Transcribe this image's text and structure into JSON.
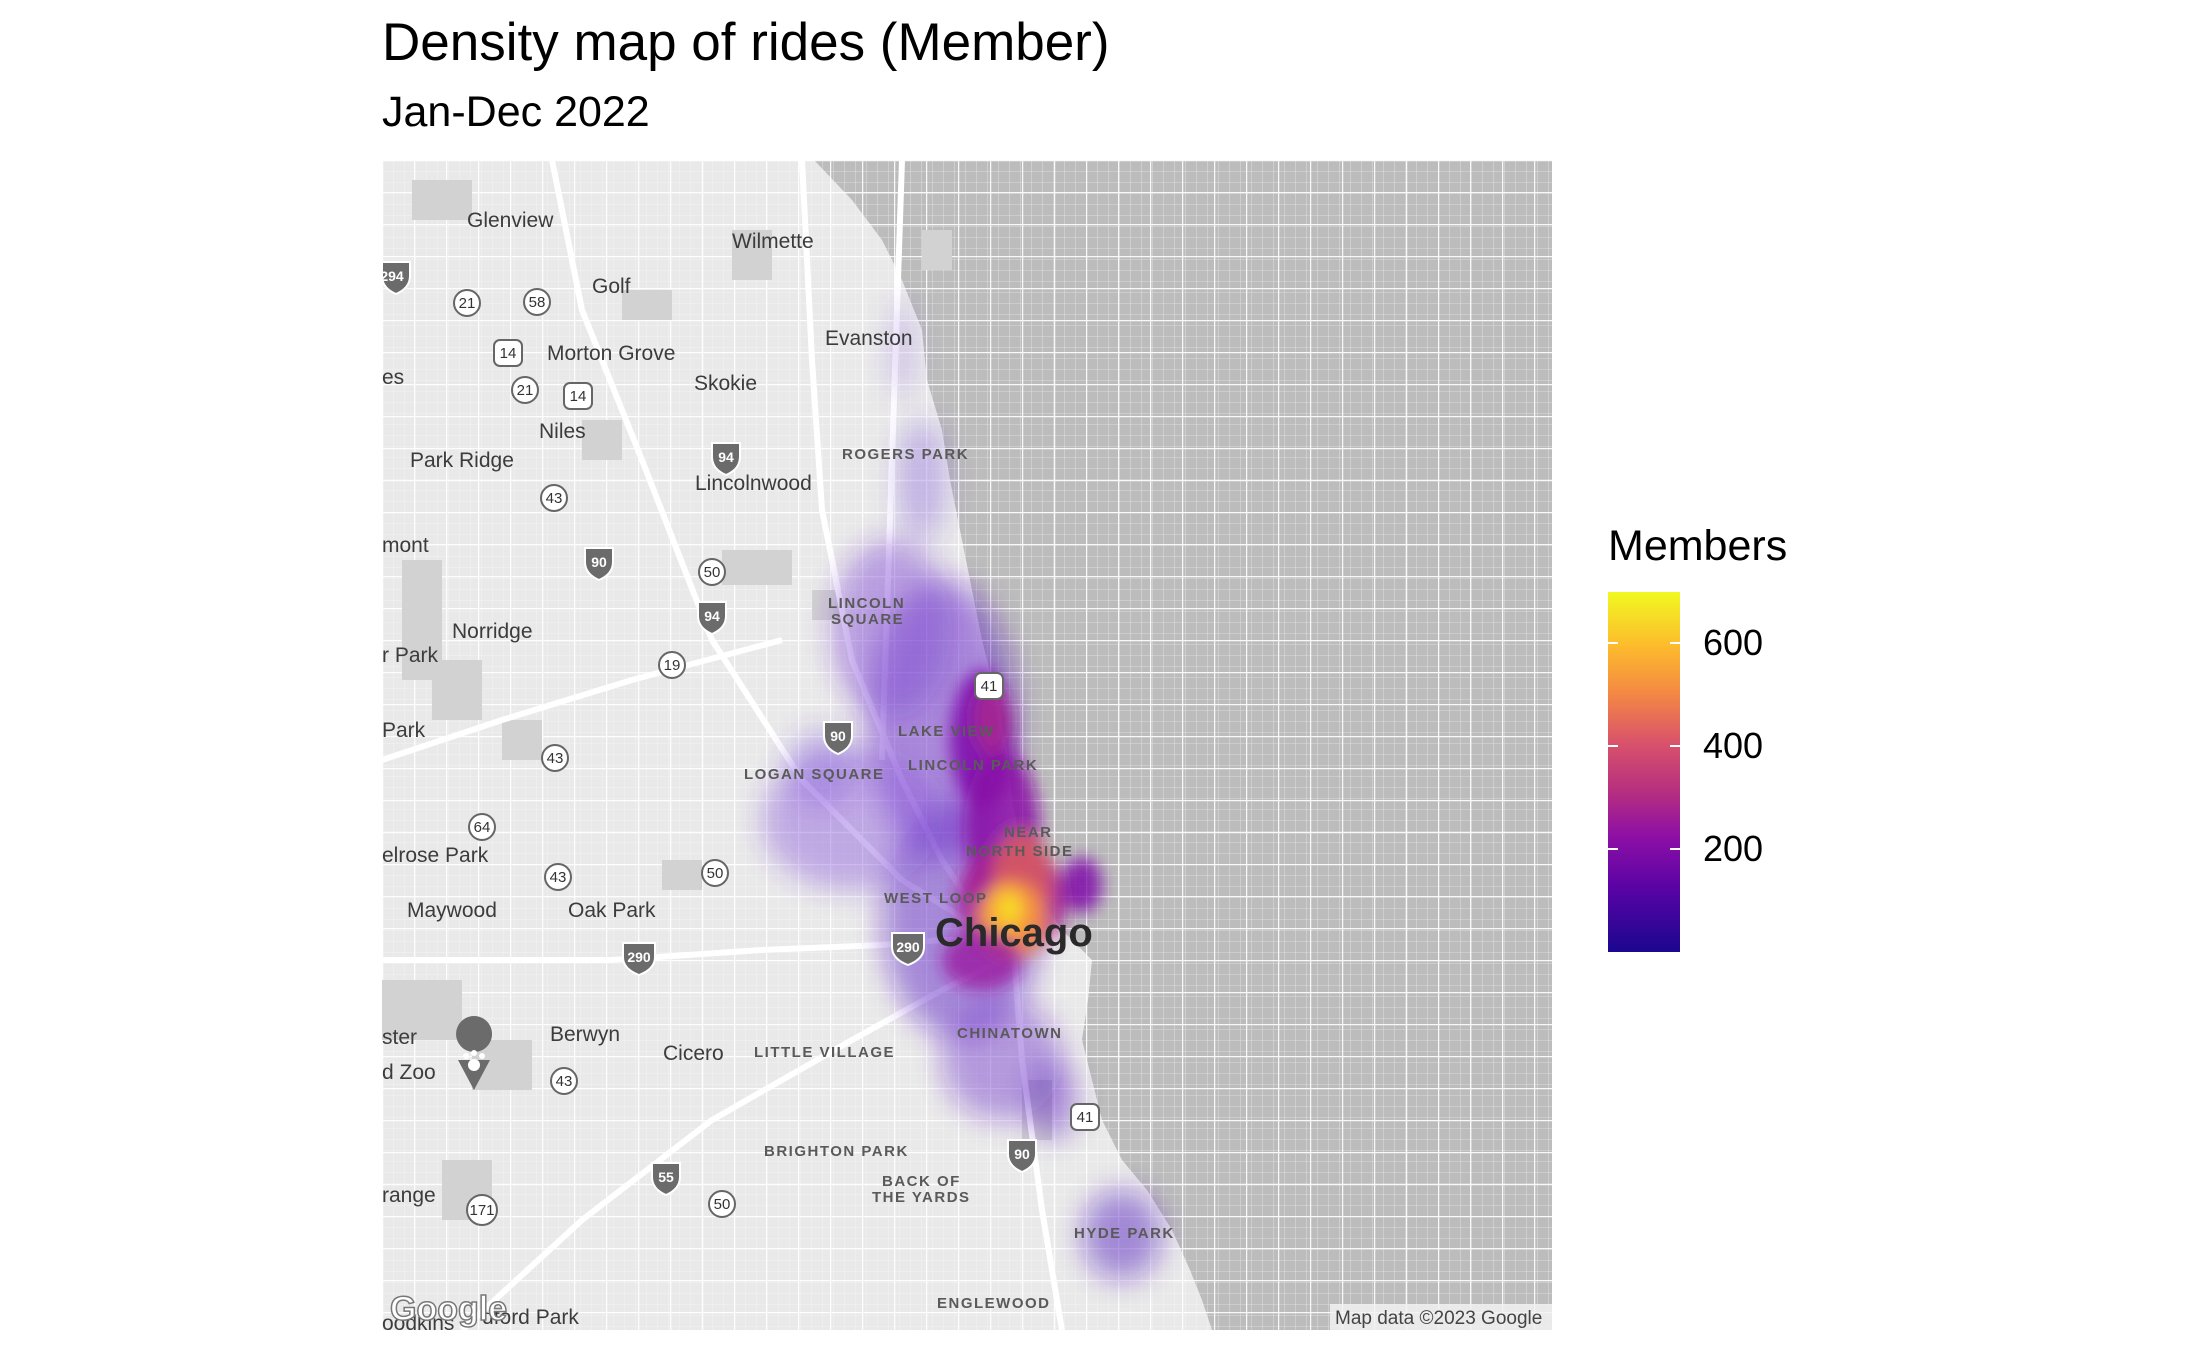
{
  "title": "Density map of rides (Member)",
  "subtitle": "Jan-Dec 2022",
  "legend": {
    "title": "Members",
    "ticks": [
      "600",
      "400",
      "200"
    ],
    "tick_values": [
      600,
      400,
      200
    ],
    "range": [
      0,
      700
    ],
    "colors": [
      "#0d0887",
      "#7e03a8",
      "#cc4778",
      "#f89540",
      "#f0f921"
    ]
  },
  "map": {
    "attribution": "Map data ©2023 Google",
    "logo": "Google",
    "places": [
      "Glenview",
      "Wilmette",
      "Golf",
      "Evanston",
      "Morton Grove",
      "Skokie",
      "Niles",
      "Park Ridge",
      "Lincolnwood",
      "Norridge",
      "Maywood",
      "Oak Park",
      "Berwyn",
      "Cicero",
      "Chicago",
      "mont",
      "r Park",
      "Park",
      "elrose Park",
      "ster",
      "d Zoo",
      "range",
      "oodkins",
      "dford Park",
      "es"
    ],
    "neighborhoods": [
      "ROGERS PARK",
      "LINCOLN",
      "SQUARE",
      "LAKE VIEW",
      "LINCOLN PARK",
      "LOGAN SQUARE",
      "NEAR",
      "NORTH SIDE",
      "WEST LOOP",
      "CHINATOWN",
      "LITTLE VILLAGE",
      "BRIGHTON PARK",
      "BACK OF",
      "THE YARDS",
      "HYDE PARK",
      "ENGLEWOOD"
    ],
    "shields": [
      "21",
      "58",
      "14",
      "21",
      "14",
      "43",
      "50",
      "19",
      "43",
      "64",
      "50",
      "43",
      "43",
      "50",
      "171",
      "41",
      "41"
    ],
    "interstates": [
      "94",
      "294",
      "90",
      "94",
      "90",
      "290",
      "55",
      "90",
      "290"
    ]
  }
}
